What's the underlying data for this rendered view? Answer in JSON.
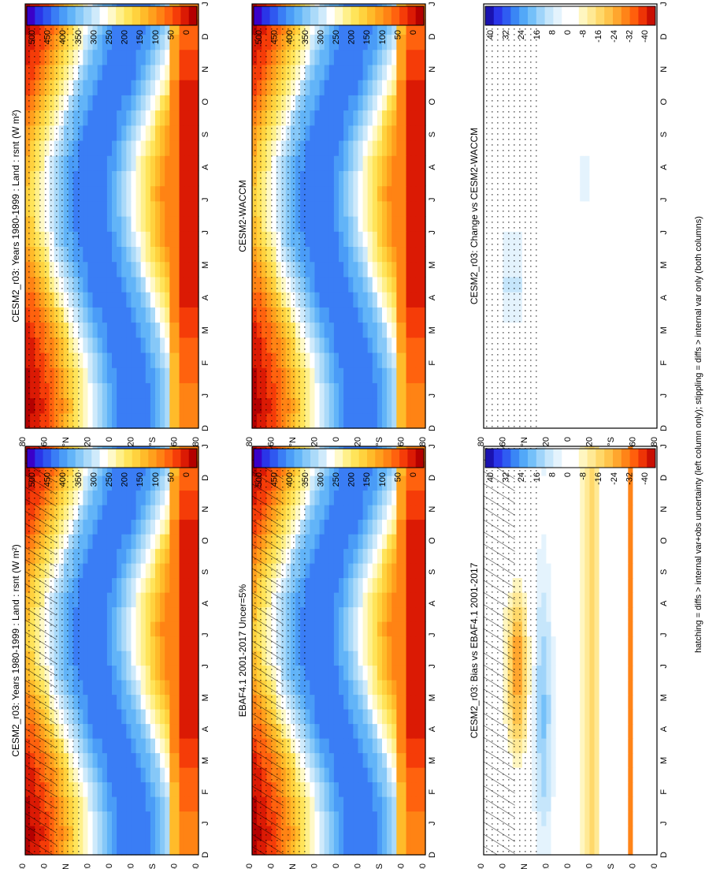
{
  "figure": {
    "footnote": "hatching = diffs > internal var+obs uncertainty (left column only); stippling = diffs > internal var only (both columns)"
  },
  "colors": {
    "abs_scale": [
      "#3a00c8",
      "#2a35e8",
      "#2f58f0",
      "#3a7df5",
      "#4a9cf7",
      "#62b4f8",
      "#86c8f8",
      "#abdaf9",
      "#cfeafb",
      "#ffffff",
      "#fff9c8",
      "#fff08a",
      "#ffe45a",
      "#ffd23e",
      "#ffbb2a",
      "#ffa01d",
      "#ff8314",
      "#ff620e",
      "#f53c08",
      "#db1a04",
      "#b40000"
    ],
    "diff_scale": [
      "#1a12b0",
      "#2a35e8",
      "#2f5cf2",
      "#3a86f5",
      "#52a8f8",
      "#74c0f9",
      "#9fd4fa",
      "#c6e6fb",
      "#e4f3fd",
      "#ffffff",
      "#ffffff",
      "#fff6c0",
      "#ffe995",
      "#ffd86a",
      "#ffc34a",
      "#ffa62e",
      "#ff8418",
      "#ff5f0c",
      "#ee3406",
      "#c80f02"
    ]
  },
  "chart_data": [
    {
      "panel": "top-left",
      "type": "heatmap",
      "title": "CESM2_r03: Years 1980-1999 : Land : rsnt (W m²)",
      "x_ticks": [
        "D",
        "J",
        "F",
        "M",
        "A",
        "M",
        "J",
        "J",
        "A",
        "S",
        "O",
        "N",
        "D",
        "J"
      ],
      "y_ticks": [
        "80",
        "60",
        "°N",
        "20",
        "0",
        "20",
        "°S",
        "60",
        "80"
      ],
      "colorbar_ticks": [
        "500",
        "450",
        "400",
        "350",
        "300",
        "250",
        "200",
        "150",
        "100",
        "50",
        "0"
      ],
      "zlim": [
        0,
        525
      ],
      "hatching": true,
      "stippling": true
    },
    {
      "panel": "top-right",
      "type": "heatmap",
      "title": "CESM2_r03: Years 1980-1999 : Land : rsnt (W m²)",
      "x_ticks": [
        "D",
        "J",
        "F",
        "M",
        "A",
        "M",
        "J",
        "J",
        "A",
        "S",
        "O",
        "N",
        "D",
        "J"
      ],
      "y_ticks": [
        "80",
        "60",
        "°N",
        "20",
        "0",
        "20",
        "°S",
        "60",
        "80"
      ],
      "colorbar_ticks": [
        "500",
        "450",
        "400",
        "350",
        "300",
        "250",
        "200",
        "150",
        "100",
        "50",
        "0"
      ],
      "zlim": [
        0,
        525
      ],
      "hatching": false,
      "stippling": true
    },
    {
      "panel": "middle-left",
      "type": "heatmap",
      "title": "EBAF4.1 2001-2017 Uncer=5%",
      "x_ticks": [
        "D",
        "J",
        "F",
        "M",
        "A",
        "M",
        "J",
        "J",
        "A",
        "S",
        "O",
        "N",
        "D",
        "J"
      ],
      "y_ticks": [
        "80",
        "60",
        "°N",
        "20",
        "0",
        "20",
        "°S",
        "60",
        "80"
      ],
      "colorbar_ticks": [
        "500",
        "450",
        "400",
        "350",
        "300",
        "250",
        "200",
        "150",
        "100",
        "50",
        "0"
      ],
      "zlim": [
        0,
        525
      ],
      "hatching": true,
      "stippling": true
    },
    {
      "panel": "middle-right",
      "type": "heatmap",
      "title": "CESM2-WACCM",
      "x_ticks": [
        "D",
        "J",
        "F",
        "M",
        "A",
        "M",
        "J",
        "J",
        "A",
        "S",
        "O",
        "N",
        "D",
        "J"
      ],
      "y_ticks": [
        "80",
        "60",
        "°N",
        "20",
        "0",
        "20",
        "°S",
        "60",
        "80"
      ],
      "colorbar_ticks": [
        "500",
        "450",
        "400",
        "350",
        "300",
        "250",
        "200",
        "150",
        "100",
        "50",
        "0"
      ],
      "zlim": [
        0,
        525
      ],
      "hatching": false,
      "stippling": true
    },
    {
      "panel": "bottom-left",
      "type": "heatmap",
      "title": "CESM2_r03: Bias vs EBAF4.1 2001-2017",
      "x_ticks": [
        "D",
        "J",
        "F",
        "M",
        "A",
        "M",
        "J",
        "J",
        "A",
        "S",
        "O",
        "N",
        "D",
        "J"
      ],
      "y_ticks": [
        "80",
        "60",
        "°N",
        "20",
        "0",
        "20",
        "°S",
        "60",
        "80"
      ],
      "colorbar_ticks": [
        "40",
        "32",
        "24",
        "16",
        "8",
        "0",
        "-8",
        "-16",
        "-24",
        "-32",
        "-40"
      ],
      "zlim": [
        -44,
        44
      ],
      "hatching": true,
      "stippling": true
    },
    {
      "panel": "bottom-right",
      "type": "heatmap",
      "title": "CESM2_r03: Change vs CESM2-WACCM",
      "x_ticks": [
        "D",
        "J",
        "F",
        "M",
        "A",
        "M",
        "J",
        "J",
        "A",
        "S",
        "O",
        "N",
        "D",
        "J"
      ],
      "y_ticks": [
        "80",
        "60",
        "°N",
        "20",
        "0",
        "20",
        "°S",
        "60",
        "80"
      ],
      "colorbar_ticks": [
        "40",
        "32",
        "24",
        "16",
        "8",
        "0",
        "-8",
        "-16",
        "-24",
        "-32",
        "-40"
      ],
      "zlim": [
        -44,
        44
      ],
      "hatching": false,
      "stippling": true
    }
  ]
}
